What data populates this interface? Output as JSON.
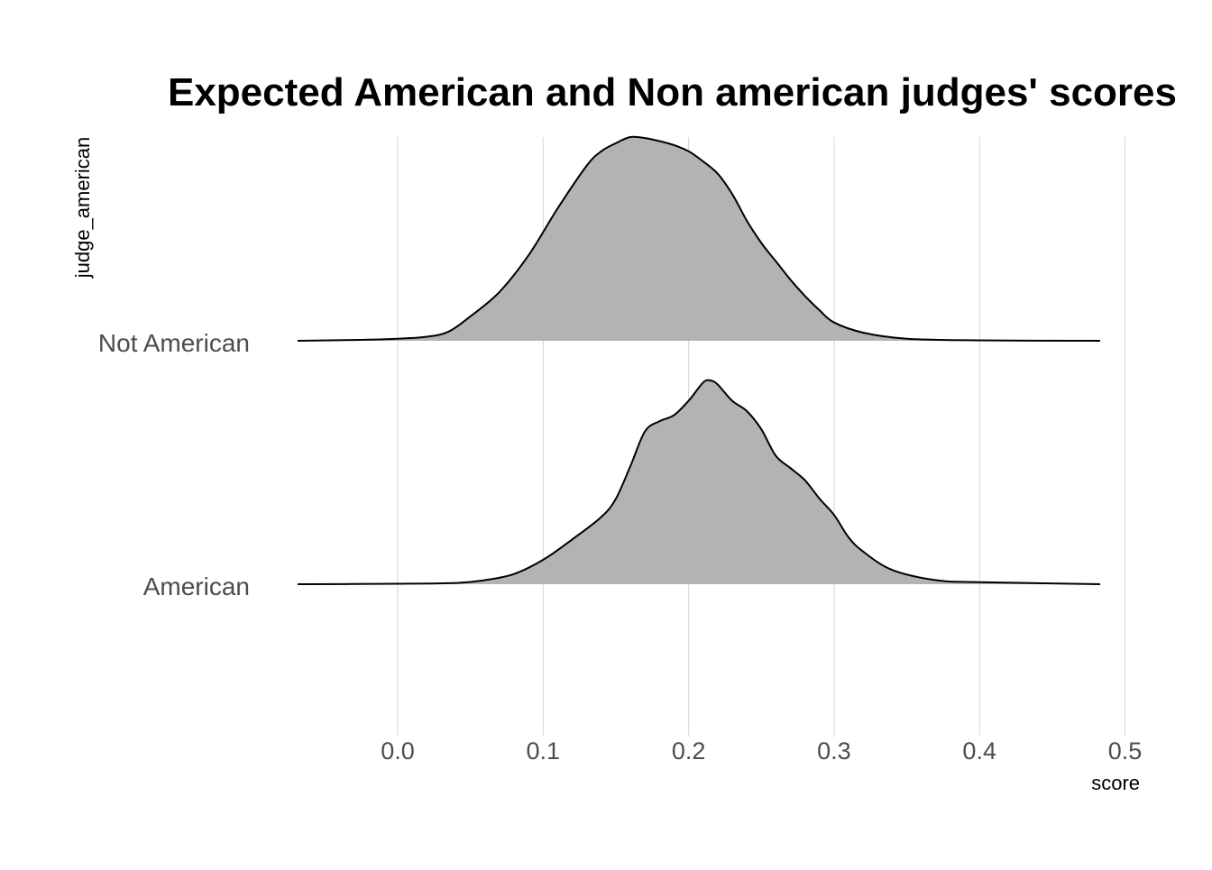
{
  "chart_data": {
    "type": "area",
    "subtype": "ridgeline",
    "title": "Expected American and Non american judges' scores",
    "xlabel": "score",
    "ylabel": "judge_american",
    "xlim": [
      -0.07,
      0.5
    ],
    "x_ticks": [
      "0.0",
      "0.1",
      "0.2",
      "0.3",
      "0.4",
      "0.5"
    ],
    "x_tick_values": [
      0.0,
      0.1,
      0.2,
      0.3,
      0.4,
      0.5
    ],
    "categories": [
      "American",
      "Not American"
    ],
    "grid": "vertical major",
    "legend": "none",
    "fill_color": "#b3b3b3",
    "line_color": "#000000",
    "series": [
      {
        "name": "Not American",
        "x": [
          -0.068,
          -0.03,
          0.0,
          0.02,
          0.035,
          0.05,
          0.07,
          0.09,
          0.11,
          0.13,
          0.14,
          0.15,
          0.16,
          0.17,
          0.18,
          0.19,
          0.2,
          0.21,
          0.22,
          0.23,
          0.24,
          0.25,
          0.26,
          0.27,
          0.28,
          0.29,
          0.3,
          0.32,
          0.35,
          0.4,
          0.483
        ],
        "density": [
          0.0,
          0.004,
          0.01,
          0.02,
          0.045,
          0.12,
          0.24,
          0.42,
          0.65,
          0.86,
          0.93,
          0.97,
          1.0,
          0.995,
          0.98,
          0.96,
          0.93,
          0.88,
          0.82,
          0.72,
          0.59,
          0.48,
          0.39,
          0.3,
          0.22,
          0.15,
          0.09,
          0.04,
          0.01,
          0.002,
          0.0
        ]
      },
      {
        "name": "American",
        "x": [
          -0.068,
          0.0,
          0.04,
          0.06,
          0.08,
          0.1,
          0.12,
          0.14,
          0.15,
          0.16,
          0.17,
          0.18,
          0.19,
          0.2,
          0.21,
          0.215,
          0.22,
          0.23,
          0.24,
          0.25,
          0.26,
          0.27,
          0.28,
          0.29,
          0.3,
          0.31,
          0.32,
          0.34,
          0.37,
          0.4,
          0.483
        ],
        "density": [
          0.0,
          0.002,
          0.006,
          0.02,
          0.05,
          0.12,
          0.22,
          0.33,
          0.42,
          0.58,
          0.75,
          0.8,
          0.83,
          0.9,
          0.99,
          1.0,
          0.98,
          0.9,
          0.85,
          0.76,
          0.63,
          0.57,
          0.51,
          0.42,
          0.34,
          0.23,
          0.16,
          0.07,
          0.02,
          0.01,
          0.0
        ]
      }
    ]
  }
}
